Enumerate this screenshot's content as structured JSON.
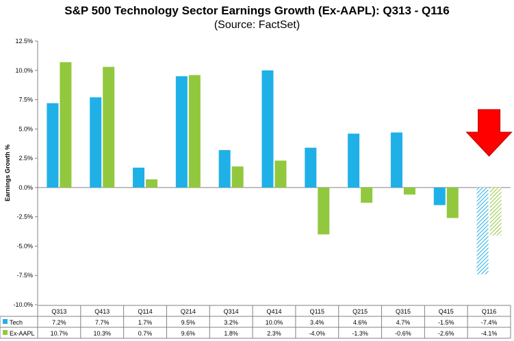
{
  "chart_data": {
    "type": "bar",
    "title": "S&P 500 Technology Sector Earnings Growth (Ex-AAPL): Q313 - Q116",
    "subtitle": "(Source: FactSet)",
    "ylabel": "Earnings Growth %",
    "categories": [
      "Q313",
      "Q413",
      "Q114",
      "Q214",
      "Q314",
      "Q414",
      "Q115",
      "Q215",
      "Q315",
      "Q415",
      "Q116"
    ],
    "ylim": [
      -10,
      12.5
    ],
    "ytick_values": [
      12.5,
      10,
      7.5,
      5,
      2.5,
      0,
      -2.5,
      -5,
      -7.5,
      -10
    ],
    "ytick_labels": [
      "12.5%",
      "10.0%",
      "7.5%",
      "5.0%",
      "2.5%",
      "0.0%",
      "-2.5%",
      "-5.0%",
      "-7.5%",
      "-10.0%"
    ],
    "grid": false,
    "series": [
      {
        "name": "Tech",
        "color": "#1fb0e8",
        "values": [
          7.2,
          7.7,
          1.7,
          9.5,
          3.2,
          10.0,
          3.4,
          4.6,
          4.7,
          -1.5,
          -7.4
        ],
        "labels": [
          "7.2%",
          "7.7%",
          "1.7%",
          "9.5%",
          "3.2%",
          "10.0%",
          "3.4%",
          "4.6%",
          "4.7%",
          "-1.5%",
          "-7.4%"
        ]
      },
      {
        "name": "Ex-AAPL",
        "color": "#92c83e",
        "values": [
          10.7,
          10.3,
          0.7,
          9.6,
          1.8,
          2.3,
          -4.0,
          -1.3,
          -0.6,
          -2.6,
          -4.1
        ],
        "labels": [
          "10.7%",
          "10.3%",
          "0.7%",
          "9.6%",
          "1.8%",
          "2.3%",
          "-4.0%",
          "-1.3%",
          "-0.6%",
          "-2.6%",
          "-4.1%"
        ]
      }
    ],
    "estimated_last_category": true,
    "annotation": {
      "type": "arrow-down",
      "color": "#ff0000"
    }
  }
}
